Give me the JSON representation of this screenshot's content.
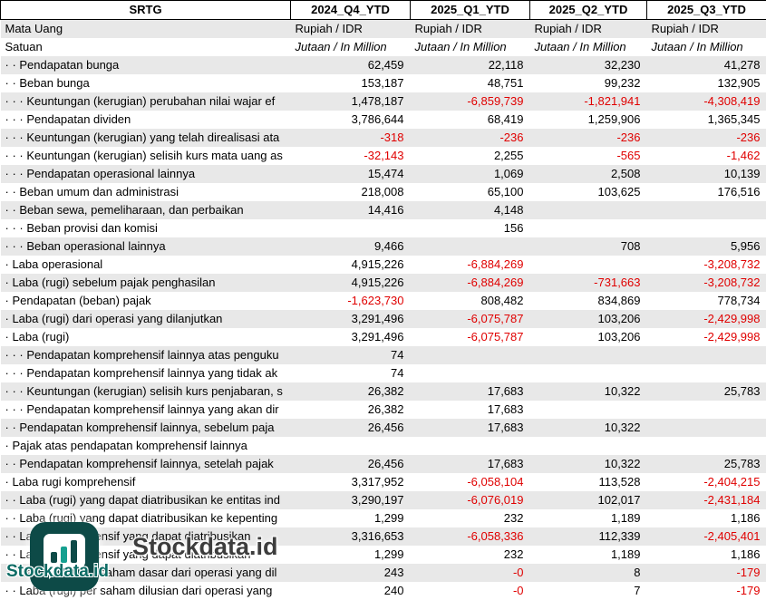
{
  "chart_data": {
    "type": "table",
    "title": "SRTG",
    "columns": [
      "2024_Q4_YTD",
      "2025_Q1_YTD",
      "2025_Q2_YTD",
      "2025_Q3_YTD"
    ],
    "meta_rows": [
      {
        "label": "Mata Uang",
        "italic": false,
        "values": [
          "Rupiah / IDR",
          "Rupiah / IDR",
          "Rupiah / IDR",
          "Rupiah / IDR"
        ]
      },
      {
        "label": "Satuan",
        "italic": true,
        "values": [
          "Jutaan / In Million",
          "Jutaan / In Million",
          "Jutaan / In Million",
          "Jutaan / In Million"
        ]
      }
    ],
    "rows": [
      {
        "label": "· · Pendapatan bunga",
        "values": [
          "62,459",
          "22,118",
          "32,230",
          "41,278"
        ]
      },
      {
        "label": "· · Beban bunga",
        "values": [
          "153,187",
          "48,751",
          "99,232",
          "132,905"
        ]
      },
      {
        "label": "· · · Keuntungan (kerugian) perubahan nilai wajar ef",
        "values": [
          "1,478,187",
          "-6,859,739",
          "-1,821,941",
          "-4,308,419"
        ]
      },
      {
        "label": "· · · Pendapatan dividen",
        "values": [
          "3,786,644",
          "68,419",
          "1,259,906",
          "1,365,345"
        ]
      },
      {
        "label": "· · · Keuntungan (kerugian) yang telah direalisasi ata",
        "values": [
          "-318",
          "-236",
          "-236",
          "-236"
        ]
      },
      {
        "label": "· · · Keuntungan (kerugian) selisih kurs mata uang as",
        "values": [
          "-32,143",
          "2,255",
          "-565",
          "-1,462"
        ]
      },
      {
        "label": "· · · Pendapatan operasional lainnya",
        "values": [
          "15,474",
          "1,069",
          "2,508",
          "10,139"
        ]
      },
      {
        "label": "· · Beban umum dan administrasi",
        "values": [
          "218,008",
          "65,100",
          "103,625",
          "176,516"
        ]
      },
      {
        "label": "· · Beban sewa, pemeliharaan, dan perbaikan",
        "values": [
          "14,416",
          "4,148",
          "",
          ""
        ]
      },
      {
        "label": "· · · Beban provisi dan komisi",
        "values": [
          "",
          "156",
          "",
          ""
        ]
      },
      {
        "label": "· · · Beban operasional lainnya",
        "values": [
          "9,466",
          "",
          "708",
          "5,956"
        ]
      },
      {
        "label": "· Laba operasional",
        "values": [
          "4,915,226",
          "-6,884,269",
          "",
          "-3,208,732"
        ]
      },
      {
        "label": "· Laba (rugi) sebelum pajak penghasilan",
        "values": [
          "4,915,226",
          "-6,884,269",
          "-731,663",
          "-3,208,732"
        ]
      },
      {
        "label": "· Pendapatan (beban) pajak",
        "values": [
          "-1,623,730",
          "808,482",
          "834,869",
          "778,734"
        ]
      },
      {
        "label": "· Laba (rugi) dari operasi yang dilanjutkan",
        "values": [
          "3,291,496",
          "-6,075,787",
          "103,206",
          "-2,429,998"
        ]
      },
      {
        "label": "· Laba (rugi)",
        "values": [
          "3,291,496",
          "-6,075,787",
          "103,206",
          "-2,429,998"
        ]
      },
      {
        "label": "· · · Pendapatan komprehensif lainnya atas penguku",
        "values": [
          "74",
          "",
          "",
          ""
        ]
      },
      {
        "label": "· · · Pendapatan komprehensif lainnya yang tidak ak",
        "values": [
          "74",
          "",
          "",
          ""
        ]
      },
      {
        "label": "· · · Keuntungan (kerugian) selisih kurs penjabaran, s",
        "values": [
          "26,382",
          "17,683",
          "10,322",
          "25,783"
        ]
      },
      {
        "label": "· · · Pendapatan komprehensif lainnya yang akan dir",
        "values": [
          "26,382",
          "17,683",
          "",
          ""
        ]
      },
      {
        "label": "· · Pendapatan komprehensif lainnya, sebelum paja",
        "values": [
          "26,456",
          "17,683",
          "10,322",
          ""
        ]
      },
      {
        "label": "· Pajak atas pendapatan komprehensif lainnya",
        "values": [
          "",
          "",
          "",
          ""
        ]
      },
      {
        "label": "· · Pendapatan komprehensif lainnya, setelah pajak",
        "values": [
          "26,456",
          "17,683",
          "10,322",
          "25,783"
        ]
      },
      {
        "label": "· Laba rugi komprehensif",
        "values": [
          "3,317,952",
          "-6,058,104",
          "113,528",
          "-2,404,215"
        ]
      },
      {
        "label": "· · Laba (rugi) yang dapat diatribusikan ke entitas ind",
        "values": [
          "3,290,197",
          "-6,076,019",
          "102,017",
          "-2,431,184"
        ]
      },
      {
        "label": "· · Laba (rugi) yang dapat diatribusikan ke kepenting",
        "values": [
          "1,299",
          "232",
          "1,189",
          "1,186"
        ]
      },
      {
        "label": "· · Laba komprehensif yang dapat diatribusikan",
        "values": [
          "3,316,653",
          "-6,058,336",
          "112,339",
          "-2,405,401"
        ]
      },
      {
        "label": "· · Laba komprehensif yang dapat diatribusikan",
        "values": [
          "1,299",
          "232",
          "1,189",
          "1,186"
        ]
      },
      {
        "label": "· · Laba (rugi) per saham dasar dari operasi yang dil",
        "values": [
          "243",
          "-0",
          "8",
          "-179"
        ]
      },
      {
        "label": "· · Laba (rugi) per saham dilusian dari operasi yang",
        "values": [
          "240",
          "-0",
          "7",
          "-179"
        ]
      }
    ]
  },
  "watermark": {
    "brand": "Stockdata.id",
    "brand_small": "Stockdata.id"
  },
  "colors": {
    "row_gray": "#e8e8e8",
    "row_white": "#ffffff",
    "negative": "#e00000",
    "text": "#000000",
    "watermark_dark": "#3d3d3d",
    "watermark_teal": "#0b6b64",
    "logo_bg": "#0d4a47",
    "logo_accent": "#16a090"
  }
}
